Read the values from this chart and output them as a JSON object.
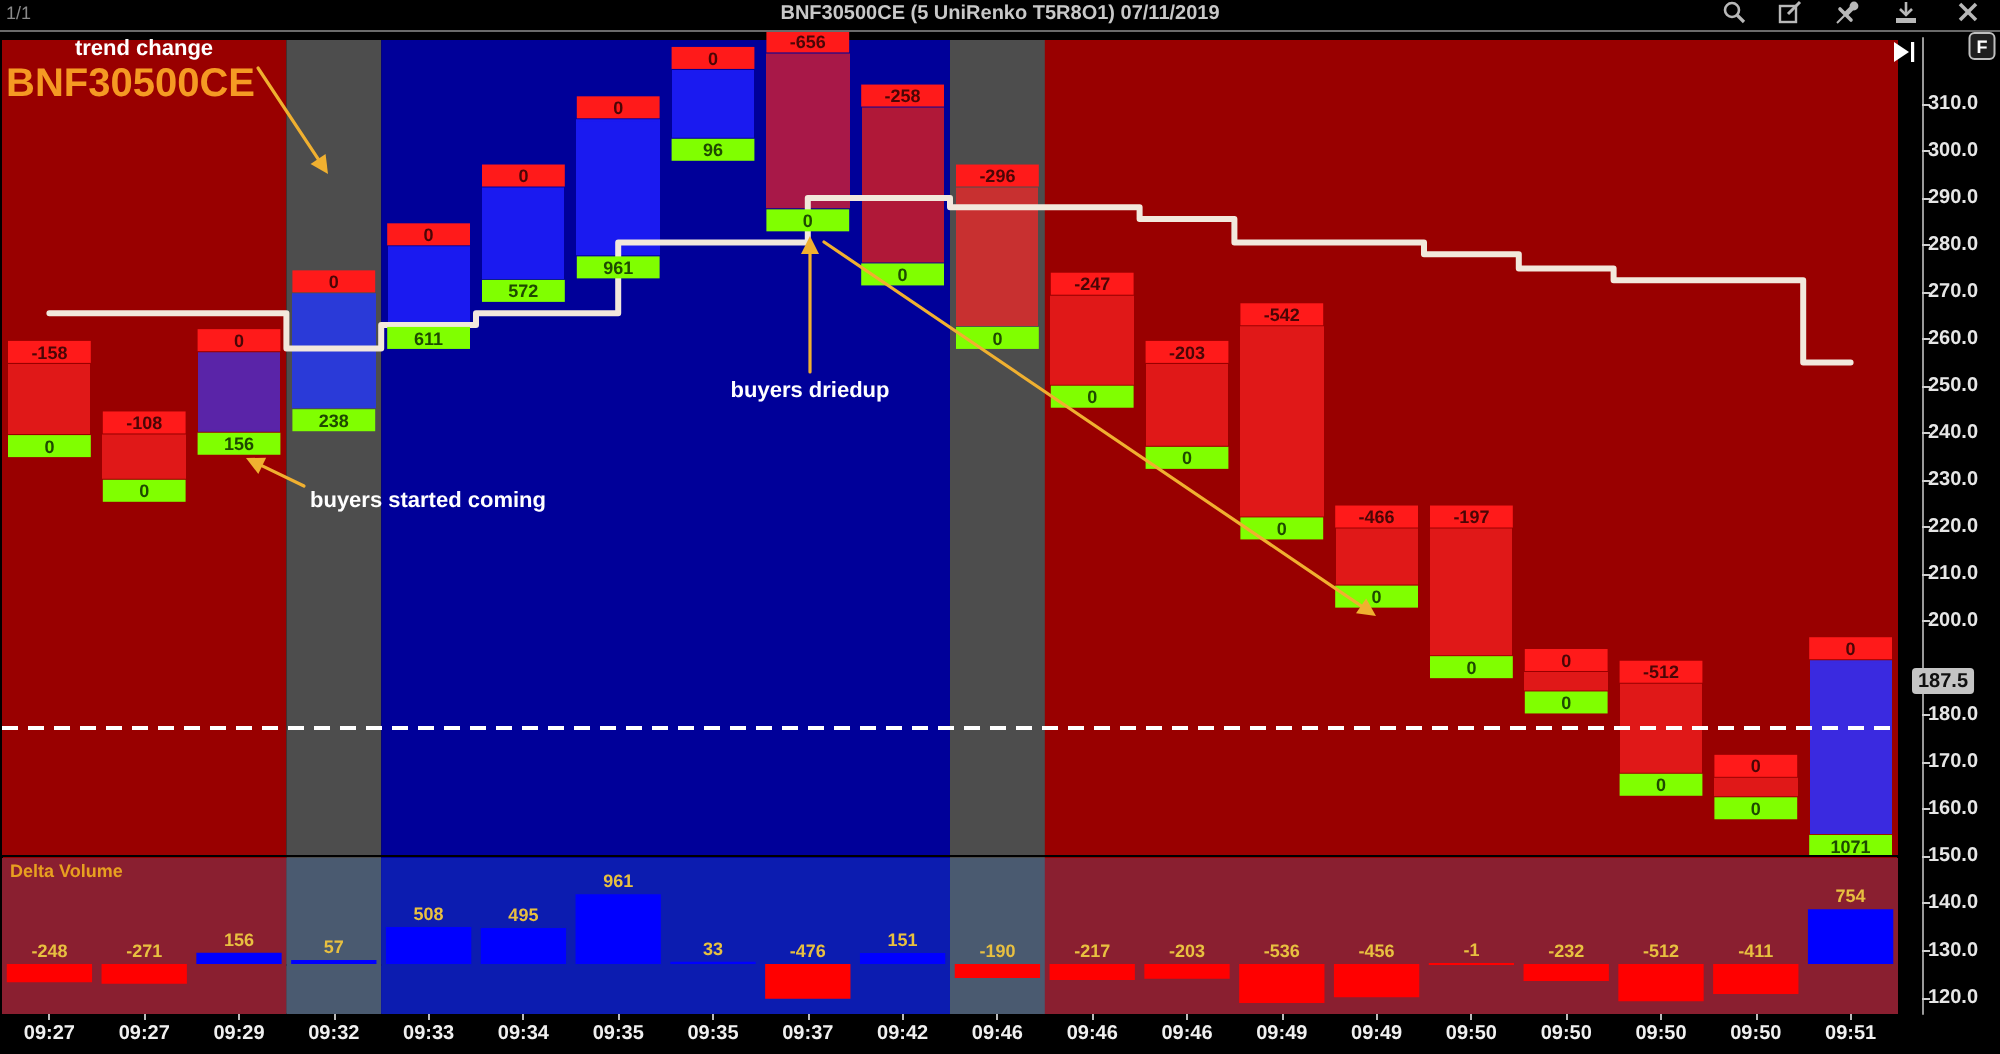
{
  "chart_data": [
    {
      "type": "candlestick",
      "title": "BNF30500CE (5 UniRenko T5R8O1) 07/11/2019",
      "subtitle": "BNF30500CE",
      "categories": [
        "09:27",
        "09:27",
        "09:29",
        "09:32",
        "09:33",
        "09:34",
        "09:35",
        "09:35",
        "09:37",
        "09:42",
        "09:46",
        "09:46",
        "09:46",
        "09:49",
        "09:49",
        "09:50",
        "09:50",
        "09:50",
        "09:50",
        "09:51"
      ],
      "ohlc": [
        [
          254.5,
          254.5,
          240,
          240
        ],
        [
          239.5,
          239.5,
          230.5,
          230.5
        ],
        [
          240.5,
          257,
          240.5,
          257
        ],
        [
          245.5,
          269.5,
          245.5,
          269.5
        ],
        [
          263,
          279.5,
          263,
          279.5
        ],
        [
          273,
          292,
          273,
          292
        ],
        [
          278,
          306.5,
          278,
          306.5
        ],
        [
          303,
          317,
          303,
          317
        ],
        [
          320.5,
          320.5,
          288,
          288
        ],
        [
          309,
          309,
          276.5,
          276.5
        ],
        [
          292,
          292,
          263,
          263
        ],
        [
          269,
          269,
          250.5,
          250.5
        ],
        [
          254.5,
          254.5,
          237.5,
          237.5
        ],
        [
          262.5,
          262.5,
          222.5,
          222.5
        ],
        [
          219.5,
          219.5,
          208,
          208
        ],
        [
          219.5,
          219.5,
          193,
          193
        ],
        [
          189,
          189,
          185.5,
          185.5
        ],
        [
          186.5,
          186.5,
          168,
          168
        ],
        [
          166.5,
          166.5,
          163,
          163
        ],
        [
          155,
          191.5,
          155,
          191.5
        ]
      ],
      "colors": [
        "#e01818",
        "#e01818",
        "#5a24a8",
        "#2a3ad8",
        "#1a1af0",
        "#1a1af0",
        "#1a1af0",
        "#1a1af0",
        "#a81848",
        "#b01838",
        "#c83030",
        "#e01818",
        "#e01818",
        "#e01818",
        "#e01818",
        "#e01818",
        "#e01818",
        "#e01818",
        "#e01818",
        "#3a2ae0"
      ],
      "series": [
        {
          "type": "step",
          "color": "#f2e8dc",
          "values": [
            265.5,
            265.5,
            265.5,
            258,
            263,
            265.5,
            null,
            280.5,
            null,
            290,
            288,
            288,
            285.5,
            280.5,
            280.5,
            278,
            275,
            272.5,
            272.5,
            255
          ]
        }
      ],
      "ylim": [
        116.5,
        324
      ],
      "yticks": [
        {
          "value": 120,
          "label": "120.0"
        },
        {
          "value": 130,
          "label": "130.0"
        },
        {
          "value": 140,
          "label": "140.0"
        },
        {
          "value": 150,
          "label": "150.0"
        },
        {
          "value": 160,
          "label": "160.0"
        },
        {
          "value": 170,
          "label": "170.0"
        },
        {
          "value": 180,
          "label": "180.0"
        },
        {
          "value": 190,
          "label": null
        },
        {
          "value": 200,
          "label": "200.0"
        },
        {
          "value": 210,
          "label": "210.0"
        },
        {
          "value": 220,
          "label": "220.0"
        },
        {
          "value": 230,
          "label": "230.0"
        },
        {
          "value": 240,
          "label": "240.0"
        },
        {
          "value": 250,
          "label": "250.0"
        },
        {
          "value": 260,
          "label": "260.0"
        },
        {
          "value": 270,
          "label": "270.0"
        },
        {
          "value": 280,
          "label": "280.0"
        },
        {
          "value": 290,
          "label": "290.0"
        },
        {
          "value": 300,
          "label": "300.0"
        },
        {
          "value": 310,
          "label": "310.0"
        }
      ],
      "tick_labels": "y",
      "ref_lines": [
        {
          "axis": "y",
          "value": 177.5,
          "color": "#ffffff",
          "line_style": "dashed"
        }
      ],
      "bands": [
        {
          "axis": "x",
          "from": "09:27",
          "to": "09:29",
          "color": "#990000"
        },
        {
          "axis": "x",
          "from": "09:32",
          "to": "09:32",
          "color": "#4d4d4d"
        },
        {
          "axis": "x",
          "from": "09:33",
          "to": "09:42",
          "color": "#000099"
        },
        {
          "axis": "x",
          "from": "09:46",
          "to": "09:51",
          "color": "#990000"
        },
        {
          "axis": "x",
          "from": "09:46",
          "to": "09:46",
          "color": "#4d4d4d"
        }
      ],
      "annotations": [
        "1/1",
        "trend change",
        "buyers started coming",
        "buyers driedup",
        "F",
        "187.5",
        "-158",
        "-108",
        "0",
        "0",
        "0",
        "0",
        "0",
        "0",
        "-656",
        "-258",
        "-296",
        "-247",
        "-203",
        "-542",
        "-466",
        "-197",
        "0",
        "-512",
        "0",
        "0",
        "0",
        "0",
        "156",
        "238",
        "611",
        "572",
        "961",
        "96",
        "0",
        "0",
        "0",
        "0",
        "0",
        "0",
        "0",
        "0",
        "0",
        "0",
        "0",
        "1071"
      ]
    },
    {
      "type": "bar",
      "ylabel": "Delta Volume",
      "categories": [
        "09:27",
        "09:27",
        "09:29",
        "09:32",
        "09:33",
        "09:34",
        "09:35",
        "09:35",
        "09:37",
        "09:42",
        "09:46",
        "09:46",
        "09:46",
        "09:49",
        "09:49",
        "09:50",
        "09:50",
        "09:50",
        "09:50",
        "09:51"
      ],
      "values": [
        -248,
        -271,
        156,
        57,
        508,
        495,
        961,
        33,
        -476,
        151,
        -190,
        -217,
        -203,
        -536,
        -456,
        -1,
        -232,
        -512,
        -411,
        754
      ],
      "colors": [
        "#ff0000",
        "#ff0000",
        "#0000ff",
        "#0000ff",
        "#0000ff",
        "#0000ff",
        "#0000ff",
        "#0000ff",
        "#ff0000",
        "#0000ff",
        "#ff0000",
        "#ff0000",
        "#ff0000",
        "#ff0000",
        "#ff0000",
        "#ff0000",
        "#ff0000",
        "#ff0000",
        "#ff0000",
        "#0000ff"
      ],
      "data_labels": true,
      "tick_labels": "x",
      "bands": [
        {
          "axis": "x",
          "from": "09:27",
          "to": "09:29",
          "color": "#8a1f30"
        },
        {
          "axis": "x",
          "from": "09:32",
          "to": "09:32",
          "color": "#4a5a70"
        },
        {
          "axis": "x",
          "from": "09:33",
          "to": "09:42",
          "color": "#0c1cb0"
        },
        {
          "axis": "x",
          "from": "09:46",
          "to": "09:51",
          "color": "#8a1f30"
        },
        {
          "axis": "x",
          "from": "09:46",
          "to": "09:46",
          "color": "#4a5a70"
        }
      ]
    }
  ]
}
